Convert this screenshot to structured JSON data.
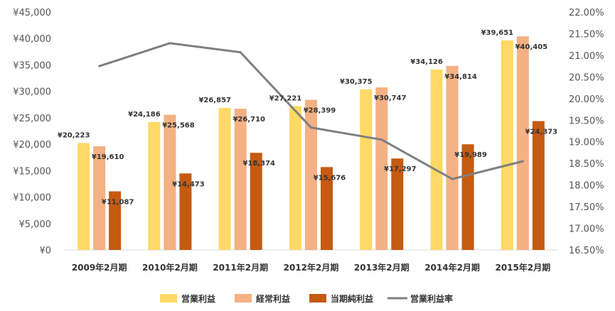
{
  "chart_data": {
    "type": "bar",
    "categories": [
      "2009年2月期",
      "2010年2月期",
      "2011年2月期",
      "2012年2月期",
      "2013年2月期",
      "2014年2月期",
      "2015年2月期"
    ],
    "series": [
      {
        "name": "営業利益",
        "type": "bar",
        "axis": "left",
        "color": "#FFD966",
        "values": [
          20223,
          24186,
          26857,
          27221,
          30375,
          34126,
          39651
        ],
        "labels": [
          "¥20,223",
          "¥24,186",
          "¥26,857",
          "¥27,221",
          "¥30,375",
          "¥34,126",
          "¥39,651"
        ]
      },
      {
        "name": "経常利益",
        "type": "bar",
        "axis": "left",
        "color": "#F4B183",
        "values": [
          19610,
          25568,
          26710,
          28399,
          30747,
          34814,
          40405
        ],
        "labels": [
          "¥19,610",
          "¥25,568",
          "¥26,710",
          "¥28,399",
          "¥30,747",
          "¥34,814",
          "¥40,405"
        ]
      },
      {
        "name": "当期純利益",
        "type": "bar",
        "axis": "left",
        "color": "#C55A11",
        "values": [
          11087,
          14473,
          18374,
          15676,
          17297,
          19989,
          24373
        ],
        "labels": [
          "¥11,087",
          "¥14,473",
          "¥18,374",
          "¥15,676",
          "¥17,297",
          "¥19,989",
          "¥24,373"
        ]
      },
      {
        "name": "営業利益率",
        "type": "line",
        "axis": "right",
        "color": "#7F7F7F",
        "values": [
          20.75,
          21.28,
          21.07,
          19.33,
          19.05,
          18.14,
          18.55
        ]
      }
    ],
    "y_left": {
      "min": 0,
      "max": 45000,
      "step": 5000,
      "tick_labels": [
        "¥0",
        "¥5,000",
        "¥10,000",
        "¥15,000",
        "¥20,000",
        "¥25,000",
        "¥30,000",
        "¥35,000",
        "¥40,000",
        "¥45,000"
      ]
    },
    "y_right": {
      "min": 16.5,
      "max": 22.0,
      "step": 0.5,
      "tick_labels": [
        "16.50%",
        "17.00%",
        "17.50%",
        "18.00%",
        "18.50%",
        "19.00%",
        "19.50%",
        "20.00%",
        "20.50%",
        "21.00%",
        "21.50%",
        "22.00%"
      ]
    },
    "grid": false,
    "legend_position": "bottom"
  }
}
